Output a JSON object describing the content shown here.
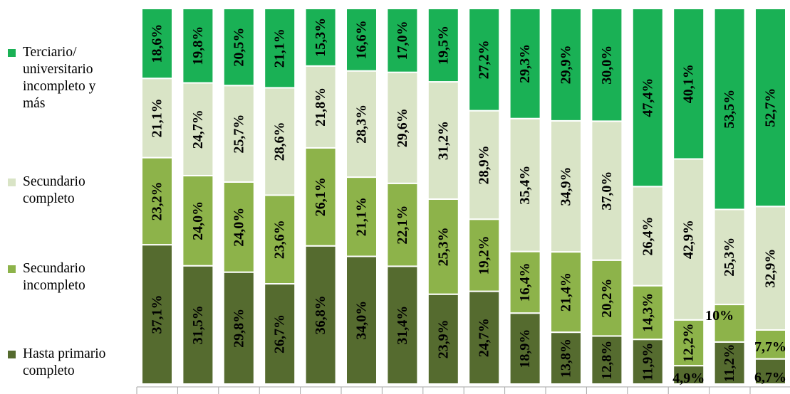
{
  "chart_data": {
    "type": "bar",
    "stacked": true,
    "normalized_percent": true,
    "orientation": "vertical",
    "categories": [
      "",
      "",
      "",
      "",
      "",
      "",
      "",
      "",
      "",
      "",
      "",
      "",
      "",
      "",
      "",
      ""
    ],
    "series": [
      {
        "name": "Hasta primario completo",
        "color": "#556b2f",
        "values": [
          37.1,
          31.5,
          29.8,
          26.7,
          36.8,
          34.0,
          31.4,
          23.9,
          24.7,
          18.9,
          13.8,
          12.8,
          11.9,
          4.9,
          11.2,
          6.7
        ],
        "labels": [
          "37,1%",
          "31,5%",
          "29,8%",
          "26,7%",
          "36,8%",
          "34,0%",
          "31,4%",
          "23,9%",
          "24,7%",
          "18,9%",
          "13,8%",
          "12,8%",
          "11,9%",
          "4,9%",
          "11,2%",
          "6,7%"
        ]
      },
      {
        "name": "Secundario incompleto",
        "color": "#8db34a",
        "values": [
          23.2,
          24.0,
          24.0,
          23.6,
          26.1,
          21.1,
          22.1,
          25.3,
          19.2,
          16.4,
          21.4,
          20.2,
          14.3,
          12.2,
          10,
          7.7
        ],
        "labels": [
          "23,2%",
          "24,0%",
          "24,0%",
          "23,6%",
          "26,1%",
          "21,1%",
          "22,1%",
          "25,3%",
          "19,2%",
          "16,4%",
          "21,4%",
          "20,2%",
          "14,3%",
          "12,2%",
          "10%",
          "7,7%"
        ]
      },
      {
        "name": "Secundario completo",
        "color": "#d9e4c6",
        "values": [
          21.1,
          24.7,
          25.7,
          28.6,
          21.8,
          28.3,
          29.6,
          31.2,
          28.9,
          35.4,
          34.9,
          37.0,
          26.4,
          42.9,
          25.3,
          32.9
        ],
        "labels": [
          "21,1%",
          "24,7%",
          "25,7%",
          "28,6%",
          "21,8%",
          "28,3%",
          "29,6%",
          "31,2%",
          "28,9%",
          "35,4%",
          "34,9%",
          "37,0%",
          "26,4%",
          "42,9%",
          "25,3%",
          "32,9%"
        ]
      },
      {
        "name": "Terciario/ universitario incompleto y más",
        "color": "#1ab155",
        "values": [
          18.6,
          19.8,
          20.5,
          21.1,
          15.3,
          16.6,
          17.0,
          19.5,
          27.2,
          29.3,
          29.9,
          30.0,
          47.4,
          40.1,
          53.5,
          52.7
        ],
        "labels": [
          "18,6%",
          "19,8%",
          "20,5%",
          "21,1%",
          "15,3%",
          "16,6%",
          "17,0%",
          "19,5%",
          "27,2%",
          "29,3%",
          "29,9%",
          "30,0%",
          "47,4%",
          "40,1%",
          "53,5%",
          "52,7%"
        ]
      }
    ],
    "title": "",
    "xlabel": "",
    "ylabel": "",
    "ylim": [
      0,
      100
    ],
    "grid": false,
    "legend": {
      "position": "left",
      "entries": [
        {
          "label": "Terciario/\nuniversitario\nincompleto y\nmás",
          "color": "#1ab155"
        },
        {
          "label": "Secundario\ncompleto",
          "color": "#d9e4c6"
        },
        {
          "label": "Secundario\nincompleto",
          "color": "#8db34a"
        },
        {
          "label": "Hasta primario\ncompleto",
          "color": "#556b2f"
        }
      ]
    },
    "outside_labels": [
      {
        "bar": 13,
        "series": 0,
        "text": "4,9%"
      },
      {
        "bar": 14,
        "series": 1,
        "text": "10%"
      },
      {
        "bar": 15,
        "series": 0,
        "text": "6,7%"
      },
      {
        "bar": 15,
        "series": 1,
        "text": "7,7%"
      }
    ]
  }
}
